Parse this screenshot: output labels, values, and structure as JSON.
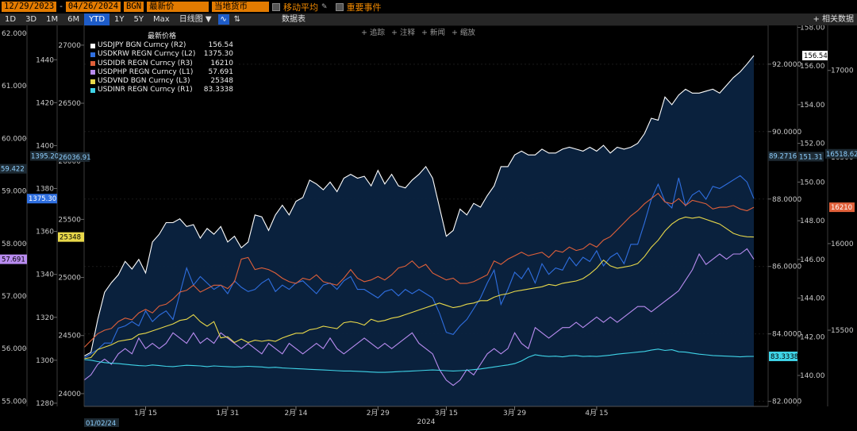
{
  "toolbar_top": {
    "start_date": "12/29/2023",
    "end_date": "04/26/2024",
    "source": "BGN",
    "price_field": "最新价",
    "currency": "当地货币",
    "moving_avg": "移动平均",
    "key_events": "重要事件"
  },
  "toolbar": {
    "ranges": [
      "1D",
      "3D",
      "1M",
      "6M",
      "YTD",
      "1Y",
      "5Y",
      "Max"
    ],
    "active_range": "YTD",
    "freq": "日线图 ▼",
    "table_label": "数据表",
    "related": "+ 相关数据"
  },
  "chart_actions": [
    "+ 追踪",
    "+ 注释",
    "+ 新闻",
    "+ 缩放"
  ],
  "legend": {
    "title": "最新价格",
    "items": [
      {
        "label": "USDJPY BGN Curncy (R2)",
        "value": "156.54",
        "color": "#ffffff"
      },
      {
        "label": "USDKRW REGN Curncy (L2)",
        "value": "1375.30",
        "color": "#2f6fe0"
      },
      {
        "label": "USDIDR REGN Curncy (R3)",
        "value": "16210",
        "color": "#e0603a"
      },
      {
        "label": "USDPHP REGN Curncy (L1)",
        "value": "57.691",
        "color": "#b98cf0"
      },
      {
        "label": "USDVND BGN Curncy (L3)",
        "value": "25348",
        "color": "#e8d84a"
      },
      {
        "label": "USDINR REGN Curncy (R1)",
        "value": "83.3338",
        "color": "#3fd4e8"
      }
    ]
  },
  "chart_data": {
    "type": "line",
    "x_start": "2024-01-02",
    "x_end": "2024-04-26",
    "x_tick_labels": [
      "1月 15",
      "1月 31",
      "2月 14",
      "2月 29",
      "3月 15",
      "3月 29",
      "4月 15"
    ],
    "x_first_label": "01/02/24",
    "x_year_label": "2024",
    "axes": {
      "L1": {
        "ticks": [
          "62.000",
          "61.000",
          "60.000",
          "59.000",
          "58.000",
          "57.000",
          "56.000",
          "55.000"
        ],
        "min": 54.9,
        "max": 62.15
      },
      "L2": {
        "ticks": [
          "1440",
          "1420",
          "1400",
          "1380",
          "1360",
          "1340",
          "1320",
          "1300",
          "1280"
        ],
        "min": 1278.5,
        "max": 1456
      },
      "L3": {
        "ticks": [
          "27000",
          "26500",
          "26000",
          "25500",
          "25000",
          "24500",
          "24000"
        ],
        "min": 23890,
        "max": 27170
      },
      "R1": {
        "ticks": [
          "92.0000",
          "90.0000",
          "88.0000",
          "86.0000",
          "84.0000",
          "82.0000"
        ],
        "min": 81.85,
        "max": 93.15
      },
      "R2": {
        "ticks": [
          "158.00",
          "156.00",
          "154.00",
          "152.00",
          "150.00",
          "148.00",
          "146.00",
          "144.00",
          "142.00",
          "140.00"
        ],
        "min": 138.4,
        "max": 158.1
      },
      "R3": {
        "ticks": [
          "17000",
          "16500",
          "16000",
          "15500"
        ],
        "min": 15060,
        "max": 17260
      }
    },
    "axis_markers": {
      "L1_right": "59.422",
      "L2_right": "1395.20",
      "L3_right": "26036.91",
      "R1_left": "89.2716",
      "R2_left": "151.31",
      "R3_left": "16518.62"
    },
    "series": [
      {
        "name": "USDJPY BGN Curncy (R2)",
        "axis": "R2",
        "color": "#ffffff",
        "fill": true,
        "values": [
          141.0,
          141.2,
          142.9,
          144.3,
          144.8,
          145.2,
          145.9,
          145.5,
          146.0,
          145.3,
          146.9,
          147.3,
          147.9,
          147.9,
          148.1,
          147.7,
          147.8,
          147.1,
          147.6,
          147.3,
          147.7,
          146.9,
          147.2,
          146.6,
          146.9,
          148.3,
          148.2,
          147.5,
          148.3,
          148.8,
          148.3,
          149.0,
          149.2,
          150.1,
          149.9,
          149.6,
          150.0,
          149.5,
          150.2,
          150.4,
          150.2,
          150.3,
          149.8,
          150.6,
          149.9,
          150.4,
          149.8,
          149.7,
          150.1,
          150.4,
          150.8,
          150.2,
          148.7,
          147.2,
          147.5,
          148.6,
          148.3,
          148.9,
          148.7,
          149.3,
          149.8,
          150.8,
          150.8,
          151.4,
          151.6,
          151.4,
          151.4,
          151.7,
          151.5,
          151.5,
          151.7,
          151.8,
          151.7,
          151.6,
          151.8,
          151.6,
          151.9,
          151.5,
          151.8,
          151.7,
          151.8,
          152.0,
          152.5,
          153.3,
          153.2,
          154.4,
          154.0,
          154.5,
          154.8,
          154.6,
          154.6,
          154.7,
          154.8,
          154.6,
          155.0,
          155.4,
          155.7,
          156.1,
          156.54
        ]
      },
      {
        "name": "USDKRW REGN Curncy (L2)",
        "axis": "L2",
        "color": "#2f6fe0",
        "values": [
          1301,
          1303,
          1305,
          1308,
          1308,
          1315,
          1316,
          1318,
          1316,
          1323,
          1318,
          1321,
          1323,
          1319,
          1331,
          1343,
          1335,
          1339,
          1336,
          1333,
          1335,
          1331,
          1337,
          1334,
          1332,
          1333,
          1336,
          1338,
          1332,
          1335,
          1333,
          1336,
          1337,
          1334,
          1331,
          1335,
          1336,
          1333,
          1337,
          1339,
          1333,
          1333,
          1331,
          1329,
          1332,
          1333,
          1330,
          1333,
          1331,
          1333,
          1331,
          1329,
          1322,
          1313,
          1312,
          1316,
          1319,
          1324,
          1329,
          1336,
          1342,
          1326,
          1333,
          1341,
          1338,
          1343,
          1336,
          1345,
          1340,
          1343,
          1342,
          1348,
          1344,
          1348,
          1346,
          1351,
          1344,
          1348,
          1350,
          1345,
          1354,
          1354,
          1364,
          1375,
          1382,
          1374,
          1371,
          1385,
          1372,
          1377,
          1379,
          1375,
          1381,
          1380,
          1382,
          1384,
          1386,
          1383,
          1375.3
        ]
      },
      {
        "name": "USDIDR REGN Curncy (R3)",
        "axis": "R3",
        "color": "#e0603a",
        "values": [
          15400,
          15440,
          15480,
          15500,
          15510,
          15550,
          15570,
          15560,
          15600,
          15620,
          15600,
          15640,
          15650,
          15680,
          15720,
          15730,
          15760,
          15720,
          15740,
          15760,
          15760,
          15740,
          15780,
          15910,
          15920,
          15850,
          15860,
          15850,
          15830,
          15800,
          15780,
          15770,
          15800,
          15790,
          15820,
          15780,
          15770,
          15760,
          15800,
          15850,
          15800,
          15780,
          15790,
          15810,
          15790,
          15820,
          15860,
          15870,
          15900,
          15860,
          15880,
          15830,
          15810,
          15790,
          15800,
          15770,
          15770,
          15780,
          15800,
          15820,
          15900,
          15880,
          15910,
          15930,
          15950,
          15930,
          15940,
          15950,
          15920,
          15960,
          15950,
          15980,
          15960,
          15970,
          16000,
          15980,
          16020,
          16040,
          16080,
          16120,
          16160,
          16190,
          16230,
          16260,
          16290,
          16240,
          16230,
          16260,
          16220,
          16250,
          16240,
          16230,
          16200,
          16210,
          16210,
          16220,
          16200,
          16190,
          16210
        ]
      },
      {
        "name": "USDPHP REGN Curncy (L1)",
        "axis": "L1",
        "color": "#b98cf0",
        "values": [
          55.4,
          55.5,
          55.7,
          55.8,
          55.7,
          55.9,
          56.0,
          55.9,
          56.2,
          56.0,
          56.1,
          56.0,
          56.1,
          56.3,
          56.2,
          56.1,
          56.3,
          56.1,
          56.2,
          56.1,
          56.3,
          56.2,
          56.1,
          56.0,
          56.1,
          56.0,
          55.9,
          56.1,
          56.0,
          55.9,
          56.1,
          56.0,
          55.9,
          56.0,
          56.1,
          56.0,
          56.2,
          56.0,
          55.9,
          56.0,
          56.1,
          56.2,
          56.1,
          56.0,
          56.1,
          56.0,
          56.1,
          56.2,
          56.3,
          56.1,
          56.0,
          55.9,
          55.6,
          55.4,
          55.3,
          55.4,
          55.6,
          55.5,
          55.7,
          55.9,
          56.0,
          55.9,
          56.0,
          56.3,
          56.1,
          56.0,
          56.4,
          56.3,
          56.2,
          56.3,
          56.4,
          56.4,
          56.5,
          56.4,
          56.5,
          56.6,
          56.5,
          56.6,
          56.5,
          56.6,
          56.7,
          56.8,
          56.8,
          56.7,
          56.8,
          56.9,
          57.0,
          57.1,
          57.3,
          57.5,
          57.8,
          57.6,
          57.7,
          57.8,
          57.7,
          57.8,
          57.8,
          57.9,
          57.7
        ]
      },
      {
        "name": "USDVND BGN Curncy (L3)",
        "axis": "L3",
        "color": "#e8d84a",
        "values": [
          24300,
          24310,
          24380,
          24400,
          24420,
          24450,
          24460,
          24470,
          24510,
          24520,
          24540,
          24560,
          24580,
          24600,
          24630,
          24640,
          24680,
          24620,
          24580,
          24620,
          24480,
          24490,
          24440,
          24470,
          24440,
          24460,
          24450,
          24460,
          24450,
          24480,
          24500,
          24520,
          24520,
          24550,
          24560,
          24580,
          24570,
          24560,
          24610,
          24620,
          24610,
          24590,
          24640,
          24620,
          24630,
          24650,
          24660,
          24680,
          24700,
          24720,
          24740,
          24760,
          24780,
          24760,
          24740,
          24750,
          24770,
          24780,
          24800,
          24800,
          24830,
          24850,
          24860,
          24880,
          24890,
          24900,
          24910,
          24920,
          24940,
          24930,
          24950,
          24960,
          24970,
          24990,
          25030,
          25080,
          25150,
          25100,
          25080,
          25090,
          25100,
          25120,
          25180,
          25260,
          25320,
          25400,
          25460,
          25500,
          25520,
          25510,
          25520,
          25500,
          25480,
          25460,
          25420,
          25380,
          25360,
          25350,
          25348
        ]
      },
      {
        "name": "USDINR REGN Curncy (R1)",
        "axis": "R1",
        "color": "#3fd4e8",
        "values": [
          83.24,
          83.22,
          83.18,
          83.15,
          83.13,
          83.12,
          83.1,
          83.08,
          83.06,
          83.05,
          83.08,
          83.06,
          83.04,
          83.03,
          83.05,
          83.07,
          83.06,
          83.05,
          83.03,
          83.05,
          83.04,
          83.03,
          83.02,
          83.03,
          83.04,
          83.03,
          83.02,
          83.0,
          83.01,
          82.99,
          82.98,
          82.97,
          82.96,
          82.95,
          82.94,
          82.93,
          82.92,
          82.91,
          82.9,
          82.9,
          82.89,
          82.88,
          82.87,
          82.86,
          82.86,
          82.87,
          82.88,
          82.89,
          82.9,
          82.91,
          82.92,
          82.93,
          82.92,
          82.91,
          82.9,
          82.91,
          82.92,
          82.94,
          82.96,
          82.99,
          83.02,
          83.05,
          83.08,
          83.12,
          83.2,
          83.31,
          83.38,
          83.35,
          83.33,
          83.34,
          83.32,
          83.35,
          83.36,
          83.33,
          83.34,
          83.33,
          83.35,
          83.37,
          83.4,
          83.42,
          83.44,
          83.46,
          83.48,
          83.52,
          83.55,
          83.51,
          83.53,
          83.47,
          83.46,
          83.43,
          83.4,
          83.38,
          83.36,
          83.35,
          83.34,
          83.33,
          83.32,
          83.33,
          83.3338
        ]
      }
    ]
  }
}
